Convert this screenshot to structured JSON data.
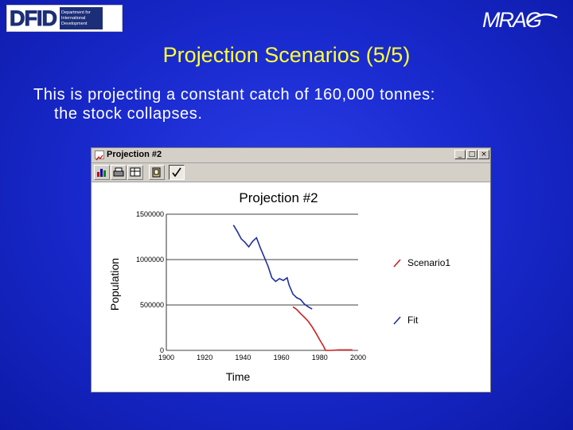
{
  "logos": {
    "dfid_mark": "DFID",
    "dfid_sub": [
      "Department for",
      "International",
      "Development"
    ],
    "mrag": "MRAG"
  },
  "slide": {
    "title": "Projection Scenarios (5/5)",
    "text_line1": "This is projecting a constant catch of 160,000 tonnes:",
    "text_line2": "the stock collapses."
  },
  "window": {
    "title": "Projection #2",
    "buttons": {
      "minimize": "_",
      "maximize": "□",
      "close": "×"
    }
  },
  "colors": {
    "scenario": "#cc1f1f",
    "fit": "#1f2fa0",
    "title": "#ffff33"
  },
  "chart_data": {
    "type": "line",
    "title": "Projection #2",
    "xlabel": "Time",
    "ylabel": "Population",
    "xlim": [
      1900,
      2000
    ],
    "ylim": [
      0,
      1500000
    ],
    "x_ticks": [
      "1900",
      "1920",
      "1940",
      "1960",
      "1980",
      "2000"
    ],
    "y_ticks": [
      "0",
      "500000",
      "1000000",
      "1500000"
    ],
    "grid": "horizontal",
    "legend_position": "right",
    "series": [
      {
        "name": "Scenario1",
        "color": "#cc1f1f",
        "points": [
          [
            1966,
            480000
          ],
          [
            1968,
            450000
          ],
          [
            1970,
            405000
          ],
          [
            1972,
            365000
          ],
          [
            1974,
            320000
          ],
          [
            1976,
            260000
          ],
          [
            1978,
            190000
          ],
          [
            1980,
            115000
          ],
          [
            1982,
            45000
          ],
          [
            1983,
            0
          ],
          [
            1986,
            0
          ],
          [
            1990,
            5000
          ],
          [
            1994,
            5000
          ],
          [
            1997,
            5000
          ]
        ]
      },
      {
        "name": "Fit",
        "color": "#1f2fa0",
        "points": [
          [
            1935,
            1380000
          ],
          [
            1937,
            1310000
          ],
          [
            1939,
            1230000
          ],
          [
            1941,
            1190000
          ],
          [
            1943,
            1140000
          ],
          [
            1945,
            1200000
          ],
          [
            1947,
            1240000
          ],
          [
            1949,
            1130000
          ],
          [
            1951,
            1030000
          ],
          [
            1953,
            930000
          ],
          [
            1955,
            800000
          ],
          [
            1957,
            760000
          ],
          [
            1959,
            790000
          ],
          [
            1961,
            770000
          ],
          [
            1963,
            800000
          ],
          [
            1964,
            720000
          ],
          [
            1966,
            620000
          ],
          [
            1968,
            580000
          ],
          [
            1970,
            560000
          ],
          [
            1972,
            510000
          ],
          [
            1974,
            480000
          ],
          [
            1976,
            455000
          ]
        ]
      }
    ]
  }
}
